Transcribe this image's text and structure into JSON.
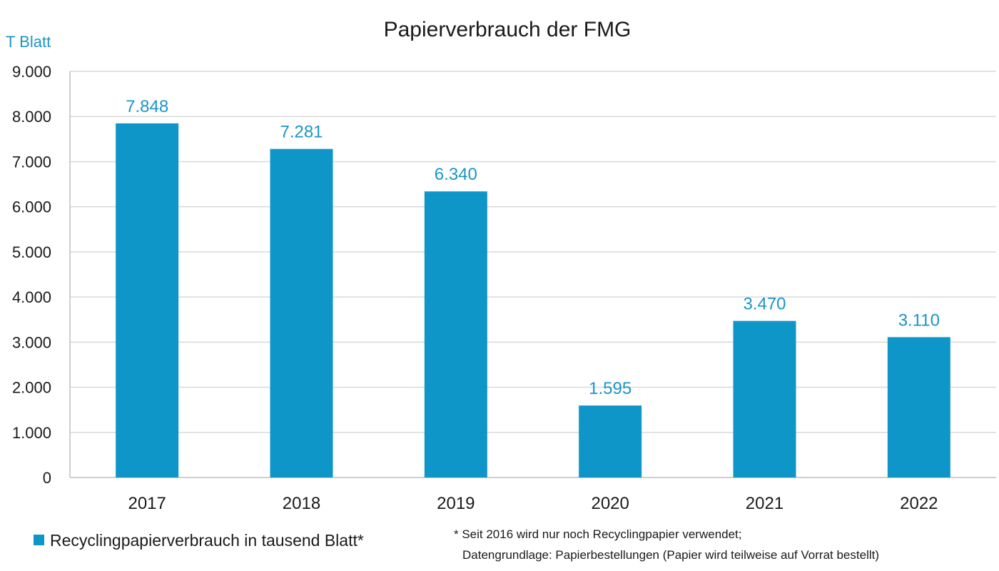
{
  "chart_data": {
    "type": "bar",
    "title": "Papierverbrauch der FMG",
    "ylabel": "T Blatt",
    "xlabel": "",
    "categories": [
      "2017",
      "2018",
      "2019",
      "2020",
      "2021",
      "2022"
    ],
    "values": [
      7848,
      7281,
      6340,
      1595,
      3470,
      3110
    ],
    "value_labels": [
      "7.848",
      "7.281",
      "6.340",
      "1.595",
      "3.470",
      "3.110"
    ],
    "ylim": [
      0,
      9000
    ],
    "yticks": [
      0,
      1000,
      2000,
      3000,
      4000,
      5000,
      6000,
      7000,
      8000,
      9000
    ],
    "ytick_labels": [
      "0",
      "1.000",
      "2.000",
      "3.000",
      "4.000",
      "5.000",
      "6.000",
      "7.000",
      "8.000",
      "9.000"
    ],
    "grid": true,
    "legend": {
      "position": "bottom-left",
      "entries": [
        "Recyclingpapierverbrauch in tausend Blatt*"
      ]
    },
    "footnote": {
      "line1": "* Seit 2016 wird nur noch Recyclingpapier verwendet;",
      "line2": "Datengrundlage:  Papierbestellungen (Papier wird teilweise auf Vorrat bestellt)"
    },
    "colors": {
      "bar": "#0f96c8",
      "value_label": "#1c95c7",
      "grid": "#d9d9d9",
      "axis": "#bfbfbf"
    }
  }
}
